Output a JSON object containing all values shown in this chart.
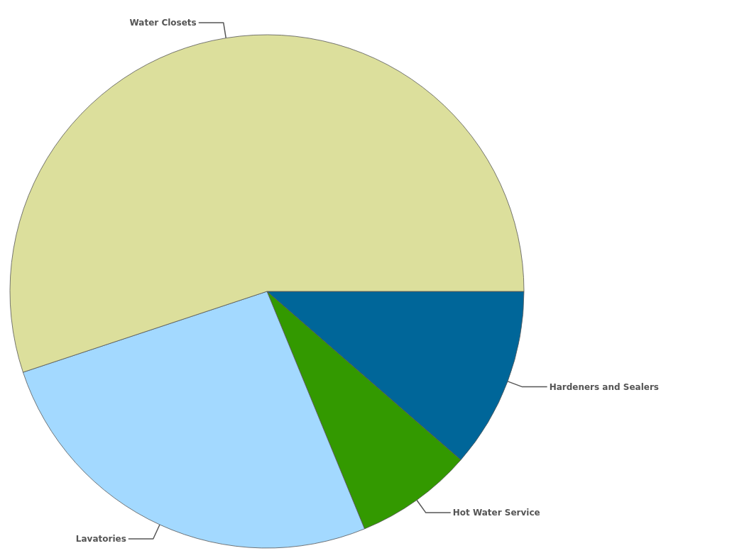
{
  "chart_data": {
    "type": "pie",
    "categories": [
      "Hardeners and Sealers",
      "Hot Water Service",
      "Lavatories",
      "Water Closets"
    ],
    "values": [
      11.4,
      7.4,
      26.1,
      55.1
    ],
    "colors": [
      "#006699",
      "#339900",
      "#a3d9ff",
      "#dcdf9c"
    ]
  }
}
